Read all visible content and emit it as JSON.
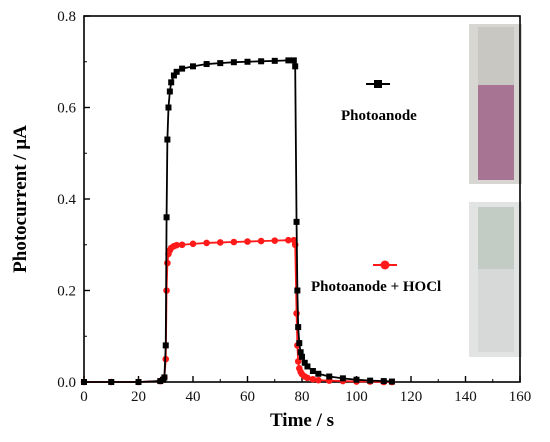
{
  "chart_data": {
    "type": "line",
    "title": "",
    "xlabel": "Time / s",
    "ylabel": "Photocurrent / μA",
    "xlim": [
      0,
      160
    ],
    "ylim": [
      0,
      0.8
    ],
    "xticks": [
      0,
      20,
      40,
      60,
      80,
      100,
      120,
      140,
      160
    ],
    "yticks": [
      0.0,
      0.2,
      0.4,
      0.6,
      0.8
    ],
    "xtick_labels": [
      "0",
      "20",
      "40",
      "60",
      "80",
      "100",
      "120",
      "140",
      "160"
    ],
    "ytick_labels": [
      "0.0",
      "0.2",
      "0.4",
      "0.6",
      "0.8"
    ],
    "grid": false,
    "legend": "right",
    "series": [
      {
        "name": "Photoanode",
        "color": "#000000",
        "marker": "square",
        "x": [
          0,
          10,
          20,
          28,
          29,
          29.5,
          30,
          30.3,
          30.6,
          31,
          31.5,
          32,
          33,
          34,
          36,
          40,
          45,
          50,
          55,
          60,
          65,
          70,
          75,
          77,
          77.5,
          78,
          78.3,
          78.6,
          79,
          79.5,
          80,
          81,
          82,
          84,
          86,
          90,
          95,
          100,
          105,
          110,
          113
        ],
        "y": [
          0,
          0,
          0,
          0.002,
          0.005,
          0.01,
          0.08,
          0.36,
          0.53,
          0.6,
          0.635,
          0.655,
          0.67,
          0.678,
          0.685,
          0.69,
          0.695,
          0.697,
          0.699,
          0.7,
          0.701,
          0.702,
          0.703,
          0.703,
          0.69,
          0.35,
          0.2,
          0.12,
          0.085,
          0.065,
          0.055,
          0.042,
          0.034,
          0.024,
          0.018,
          0.012,
          0.008,
          0.005,
          0.003,
          0.002,
          0.001
        ]
      },
      {
        "name": "Photoanode + HOCl",
        "color": "#ff1a1a",
        "marker": "circle",
        "x": [
          0,
          10,
          20,
          28,
          29,
          29.5,
          30,
          30.3,
          30.6,
          31,
          31.5,
          32,
          33,
          34,
          36,
          40,
          45,
          50,
          55,
          60,
          65,
          70,
          75,
          77,
          77.5,
          78,
          78.3,
          78.6,
          79,
          79.5,
          80,
          81,
          82,
          84,
          86,
          90,
          95,
          100,
          105,
          110,
          113
        ],
        "y": [
          0,
          0,
          0,
          0.002,
          0.005,
          0.01,
          0.05,
          0.2,
          0.26,
          0.28,
          0.288,
          0.293,
          0.297,
          0.299,
          0.3,
          0.302,
          0.304,
          0.305,
          0.306,
          0.307,
          0.308,
          0.309,
          0.31,
          0.31,
          0.3,
          0.15,
          0.08,
          0.045,
          0.03,
          0.022,
          0.017,
          0.012,
          0.009,
          0.006,
          0.004,
          0.003,
          0.002,
          0.001,
          0.001,
          0,
          0
        ]
      }
    ],
    "insets": [
      {
        "name": "photo-pink-strip",
        "colors": {
          "cap": "#c9c7c2",
          "body": "#a77593",
          "frame": "#d8d6d2"
        }
      },
      {
        "name": "photo-white-strip",
        "colors": {
          "cap": "#c2cbc4",
          "body": "#d6d9d8",
          "frame": "#e2e4e3"
        }
      }
    ]
  }
}
